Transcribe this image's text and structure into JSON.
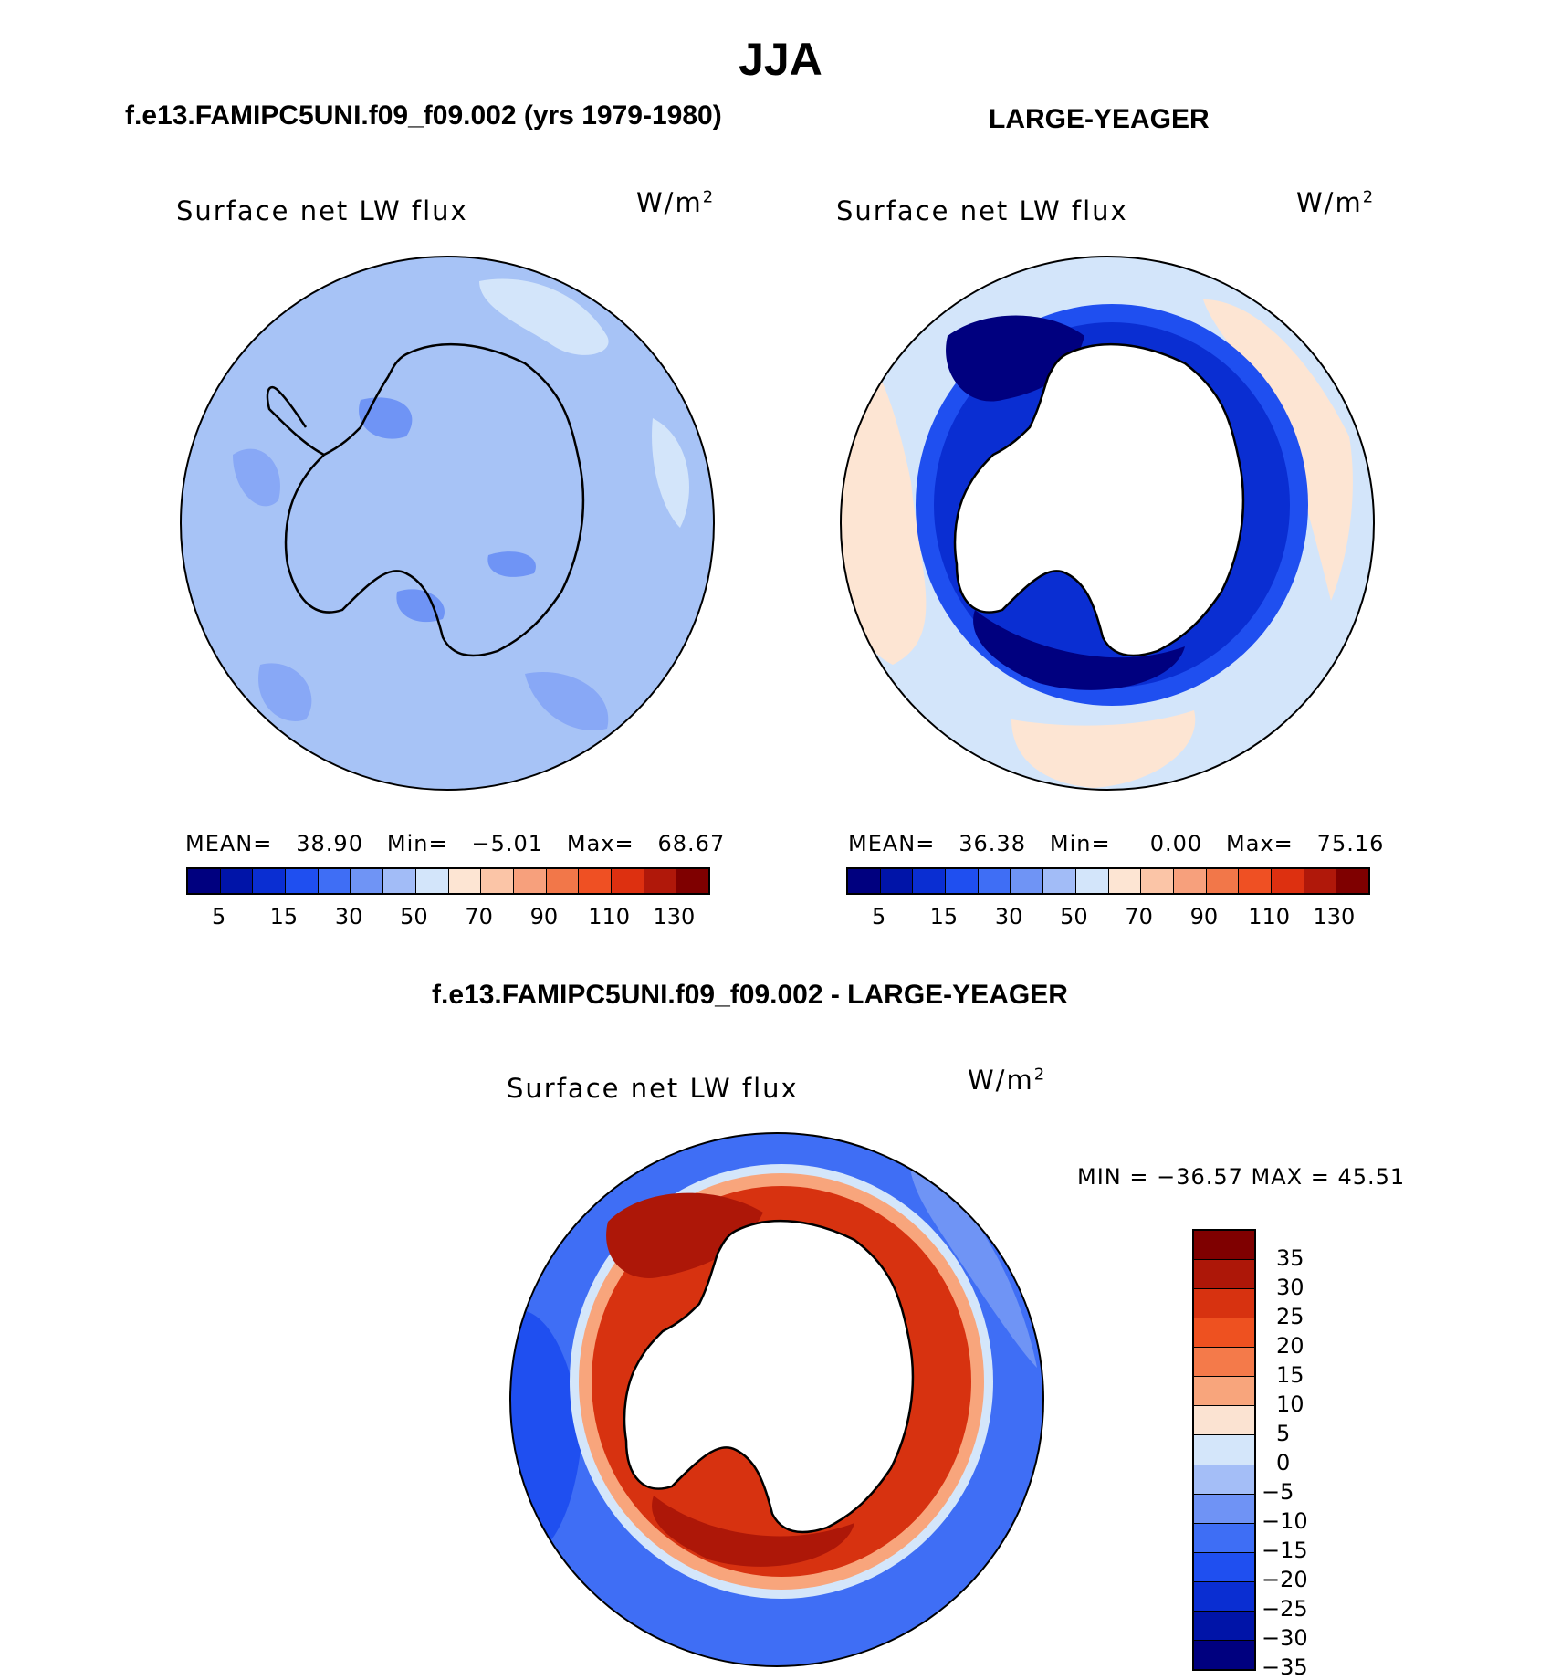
{
  "title": "JJA",
  "panels": [
    {
      "title": "f.e13.FAMIPC5UNI.f09_f09.002 (yrs 1979-1980)",
      "variable": "Surface net LW flux",
      "units_base": "W/m",
      "units_exp": "2",
      "stats": {
        "mean_label": "MEAN=",
        "mean": "38.90",
        "min_label": "Min=",
        "min": "−5.01",
        "max_label": "Max=",
        "max": "68.67"
      }
    },
    {
      "title": "LARGE-YEAGER",
      "variable": "Surface net LW flux",
      "units_base": "W/m",
      "units_exp": "2",
      "stats": {
        "mean_label": "MEAN=",
        "mean": "36.38",
        "min_label": "Min=",
        "min": "0.00",
        "max_label": "Max=",
        "max": "75.16"
      }
    }
  ],
  "diff_panel": {
    "title": "f.e13.FAMIPC5UNI.f09_f09.002 - LARGE-YEAGER",
    "variable": "Surface net LW flux",
    "units_base": "W/m",
    "units_exp": "2",
    "minmax": "MIN = −36.57 MAX =   45.51"
  },
  "colorbar_top": {
    "colors": [
      "#00007f",
      "#0014a8",
      "#0a2ed2",
      "#1f4ff0",
      "#3f6ef5",
      "#6f94f5",
      "#a2bcf7",
      "#d3e5fa",
      "#fde5d3",
      "#fbc5a7",
      "#f7a07c",
      "#f27749",
      "#ef5023",
      "#dd3010",
      "#b0180a",
      "#7f0000"
    ],
    "labels": [
      "5",
      "15",
      "30",
      "50",
      "70",
      "90",
      "110",
      "130"
    ]
  },
  "colorbar_diff": {
    "colors": [
      "#7f0000",
      "#ad1708",
      "#d73210",
      "#ee5120",
      "#f47a4a",
      "#f8a57c",
      "#fbe3d2",
      "#d4e6fa",
      "#a4bef7",
      "#6f93f5",
      "#3e6ef5",
      "#1f4ff0",
      "#0a2ed2",
      "#0014a8",
      "#00007f"
    ],
    "labels": [
      "35",
      "30",
      "25",
      "20",
      "15",
      "10",
      "5",
      "0",
      "−5",
      "−10",
      "−15",
      "−20",
      "−25",
      "−30",
      "−35"
    ]
  },
  "colors": {
    "panel1_ocean": "#a7c3f6",
    "panel1_dark": "#6f94f5",
    "panel1_light": "#d3e5fa",
    "panel2_outer": "#d3e5fa",
    "panel2_peach": "#fde5d3",
    "panel2_ring_dark": "#0014a8",
    "panel2_ring_mid": "#1f4ff0",
    "diff_outer": "#3f6ef5",
    "diff_ring": "#d73210",
    "diff_ring_dark": "#ad1708"
  }
}
